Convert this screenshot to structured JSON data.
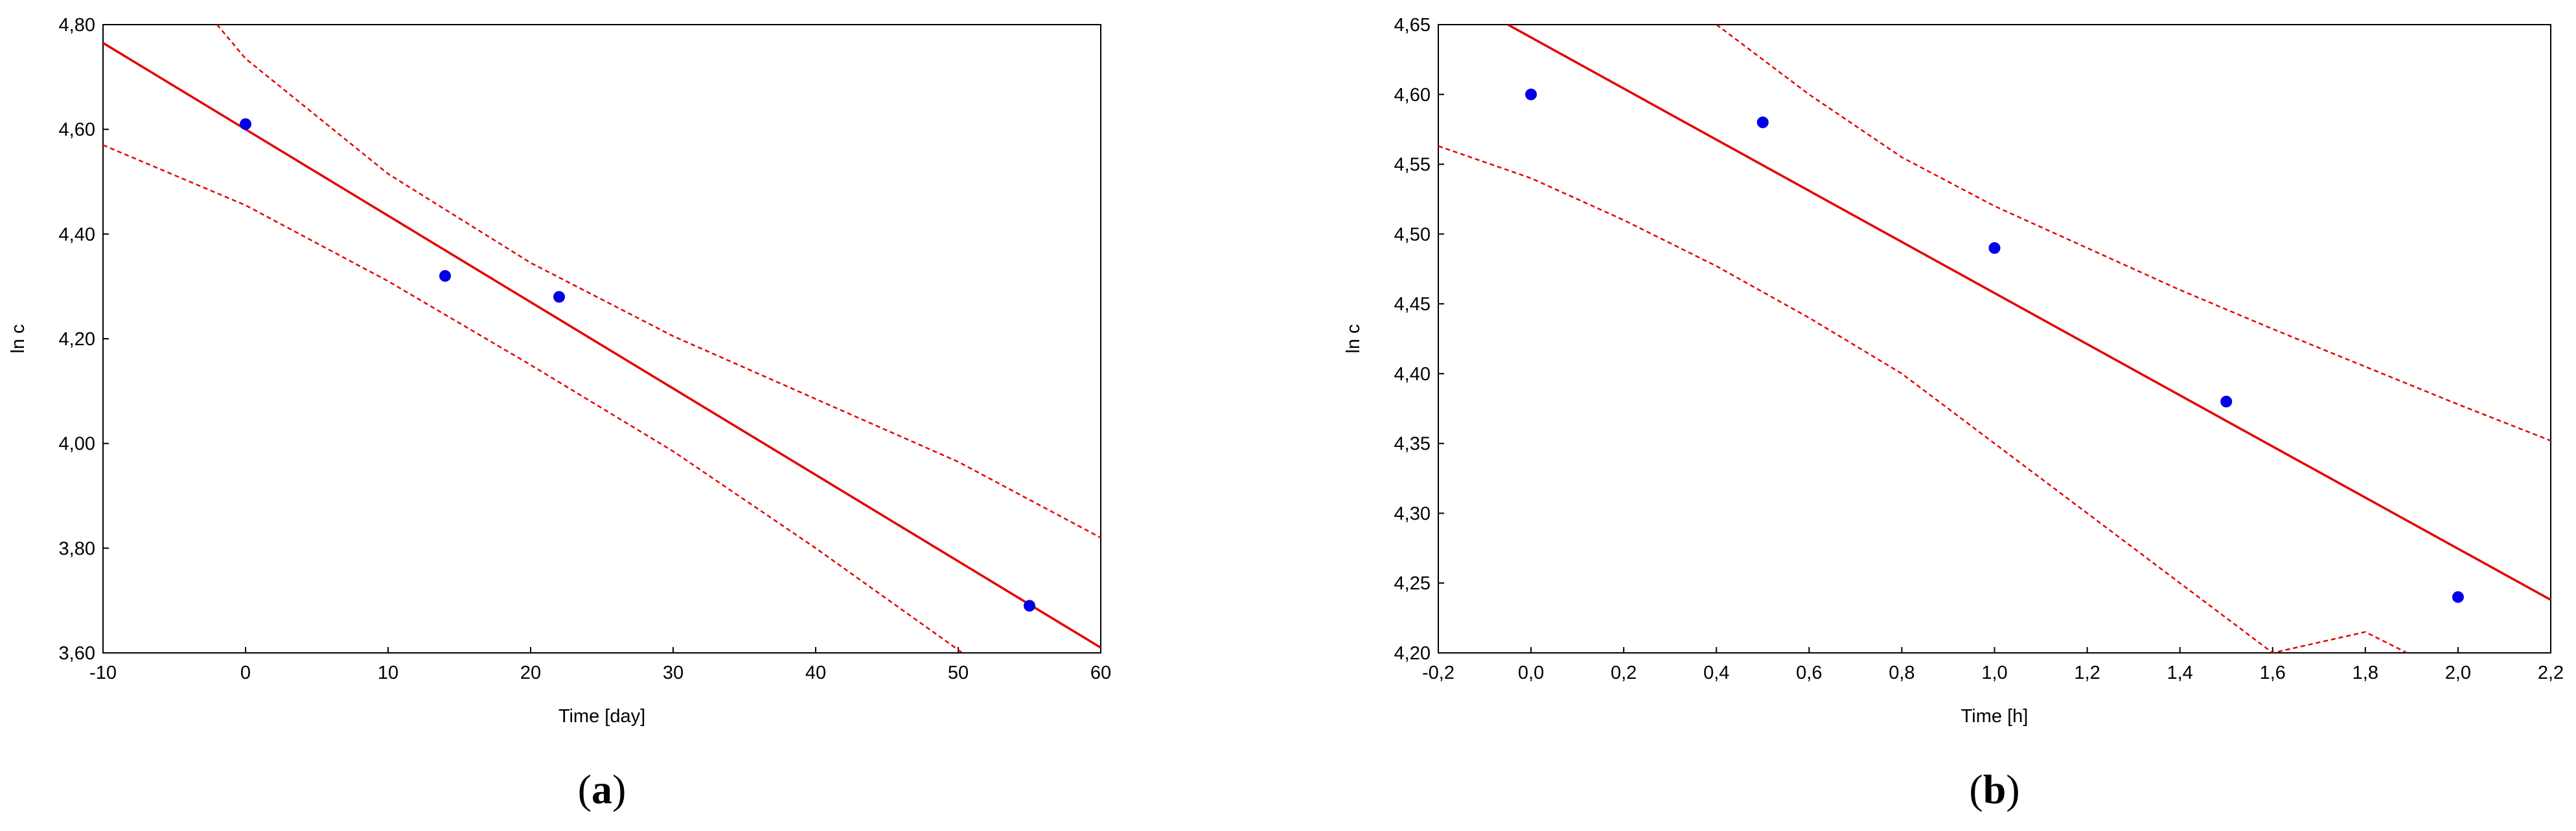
{
  "chart_data": [
    {
      "type": "scatter",
      "panel_label": "(a)",
      "panel_letter": "a",
      "xlabel": "Time [day]",
      "ylabel": "ln c",
      "xlim": [
        -10,
        60
      ],
      "ylim": [
        3.6,
        4.8
      ],
      "xticks": [
        -10,
        0,
        10,
        20,
        30,
        40,
        50,
        60
      ],
      "yticks": [
        3.6,
        3.8,
        4.0,
        4.2,
        4.4,
        4.6,
        4.8
      ],
      "xtick_labels": [
        "-10",
        "0",
        "10",
        "20",
        "30",
        "40",
        "50",
        "60"
      ],
      "ytick_labels": [
        "3,60",
        "3,80",
        "4,00",
        "4,20",
        "4,40",
        "4,60",
        "4,80"
      ],
      "grid": false,
      "points": {
        "x": [
          0,
          14,
          22,
          55
        ],
        "y": [
          4.61,
          4.32,
          4.28,
          3.69
        ]
      },
      "fit_line": {
        "x": [
          -10,
          60
        ],
        "y": [
          4.765,
          3.61
        ]
      },
      "ci_upper": {
        "x": [
          -2,
          0,
          10,
          20,
          30,
          40,
          50,
          60
        ],
        "y": [
          4.8,
          4.735,
          4.515,
          4.345,
          4.205,
          4.085,
          3.965,
          3.82
        ]
      },
      "ci_lower": {
        "x": [
          -10,
          0,
          10,
          20,
          30,
          40,
          50.3
        ],
        "y": [
          4.57,
          4.455,
          4.31,
          4.15,
          3.985,
          3.8,
          3.6
        ]
      },
      "colors": {
        "points": "#0000e6",
        "fit": "#e60000"
      }
    },
    {
      "type": "scatter",
      "panel_label": "(b)",
      "panel_letter": "b",
      "xlabel": "Time [h]",
      "ylabel": "ln c",
      "xlim": [
        -0.2,
        2.2
      ],
      "ylim": [
        4.2,
        4.65
      ],
      "xticks": [
        -0.2,
        0.0,
        0.2,
        0.4,
        0.6,
        0.8,
        1.0,
        1.2,
        1.4,
        1.6,
        1.8,
        2.0,
        2.2
      ],
      "yticks": [
        4.2,
        4.25,
        4.3,
        4.35,
        4.4,
        4.45,
        4.5,
        4.55,
        4.6,
        4.65
      ],
      "xtick_labels": [
        "-0,2",
        "0,0",
        "0,2",
        "0,4",
        "0,6",
        "0,8",
        "1,0",
        "1,2",
        "1,4",
        "1,6",
        "1,8",
        "2,0",
        "2,2"
      ],
      "ytick_labels": [
        "4,20",
        "4,25",
        "4,30",
        "4,35",
        "4,40",
        "4,45",
        "4,50",
        "4,55",
        "4,60",
        "4,65"
      ],
      "grid": false,
      "points": {
        "x": [
          0.0,
          0.5,
          1.0,
          1.5,
          2.0
        ],
        "y": [
          4.6,
          4.58,
          4.49,
          4.38,
          4.24
        ]
      },
      "fit_line": {
        "x": [
          -0.05,
          2.2
        ],
        "y": [
          4.65,
          4.238
        ]
      },
      "ci_upper": {
        "x": [
          0.4,
          0.6,
          0.8,
          1.0,
          1.2,
          1.4,
          1.6,
          1.8,
          2.0,
          2.2
        ],
        "y": [
          4.65,
          4.6,
          4.555,
          4.52,
          4.49,
          4.46,
          4.432,
          4.405,
          4.378,
          4.352
        ]
      },
      "ci_lower": {
        "x": [
          -0.2,
          0.0,
          0.2,
          0.4,
          0.6,
          0.8,
          1.0,
          1.2,
          1.4,
          1.6,
          1.8,
          1.89
        ],
        "y": [
          4.563,
          4.54,
          4.51,
          4.477,
          4.44,
          4.4,
          4.35,
          4.3,
          4.25,
          4.2,
          4.215,
          4.2
        ]
      },
      "colors": {
        "points": "#0000e6",
        "fit": "#e60000"
      }
    }
  ]
}
